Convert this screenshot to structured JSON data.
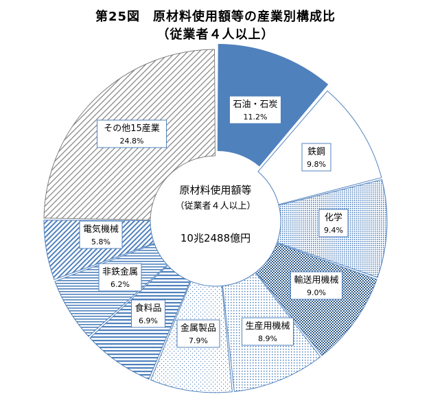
{
  "title_line1": "第25図　原材料使用額等の産業別構成比",
  "title_line2": "（従業者４人以上）",
  "chart_data": {
    "type": "pie",
    "style": "doughnut",
    "title": "第25図　原材料使用額等の産業別構成比（従業者４人以上）",
    "center_label": [
      "原材料使用額等",
      "（従業者４人以上）",
      "10兆2488億円"
    ],
    "categories": [
      "石油・石炭",
      "鉄鋼",
      "化学",
      "輸送用機械",
      "生産用機械",
      "金属製品",
      "食料品",
      "非鉄金属",
      "電気機械",
      "その他15産業"
    ],
    "values": [
      11.2,
      9.8,
      9.4,
      9.0,
      8.9,
      7.9,
      6.9,
      6.2,
      5.8,
      24.8
    ],
    "value_labels": [
      "11.2%",
      "9.8%",
      "9.4%",
      "9.0%",
      "8.9%",
      "7.9%",
      "6.9%",
      "6.2%",
      "5.8%",
      "24.8%"
    ],
    "exploded": "石油・石炭",
    "colors": {
      "accent": "#4f81bd",
      "segment_line": "#4f81bd",
      "other_line": "#7f7f7f",
      "label_border": "#4f81bd"
    },
    "patterns": [
      "solid",
      "none",
      "dots-fine",
      "checker",
      "dots-light",
      "dots-sparse",
      "horizontal-stripes",
      "horizontal-stripes-wide",
      "diagonal",
      "diagonal-gray"
    ]
  }
}
